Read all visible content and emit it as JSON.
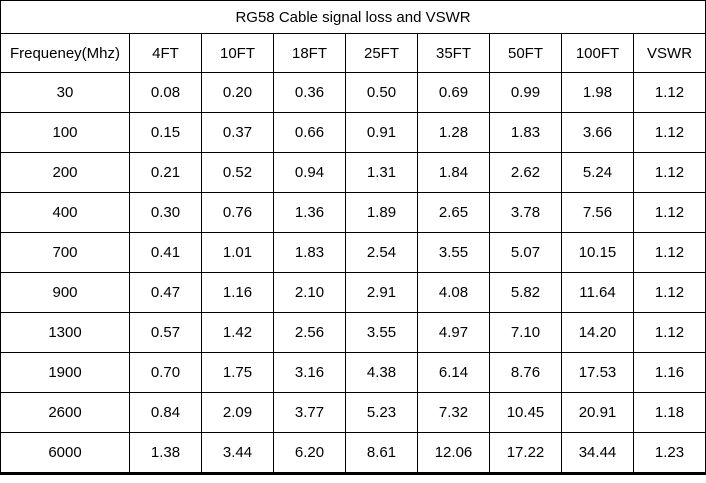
{
  "title": "RG58 Cable signal loss and VSWR",
  "chart_data": {
    "type": "table",
    "title": "RG58 Cable signal loss and VSWR",
    "columns": [
      "Frequeney(Mhz)",
      "4FT",
      "10FT",
      "18FT",
      "25FT",
      "35FT",
      "50FT",
      "100FT",
      "VSWR"
    ],
    "rows": [
      [
        "30",
        "0.08",
        "0.20",
        "0.36",
        "0.50",
        "0.69",
        "0.99",
        "1.98",
        "1.12"
      ],
      [
        "100",
        "0.15",
        "0.37",
        "0.66",
        "0.91",
        "1.28",
        "1.83",
        "3.66",
        "1.12"
      ],
      [
        "200",
        "0.21",
        "0.52",
        "0.94",
        "1.31",
        "1.84",
        "2.62",
        "5.24",
        "1.12"
      ],
      [
        "400",
        "0.30",
        "0.76",
        "1.36",
        "1.89",
        "2.65",
        "3.78",
        "7.56",
        "1.12"
      ],
      [
        "700",
        "0.41",
        "1.01",
        "1.83",
        "2.54",
        "3.55",
        "5.07",
        "10.15",
        "1.12"
      ],
      [
        "900",
        "0.47",
        "1.16",
        "2.10",
        "2.91",
        "4.08",
        "5.82",
        "11.64",
        "1.12"
      ],
      [
        "1300",
        "0.57",
        "1.42",
        "2.56",
        "3.55",
        "4.97",
        "7.10",
        "14.20",
        "1.12"
      ],
      [
        "1900",
        "0.70",
        "1.75",
        "3.16",
        "4.38",
        "6.14",
        "8.76",
        "17.53",
        "1.16"
      ],
      [
        "2600",
        "0.84",
        "2.09",
        "3.77",
        "5.23",
        "7.32",
        "10.45",
        "20.91",
        "1.18"
      ],
      [
        "6000",
        "1.38",
        "3.44",
        "6.20",
        "8.61",
        "12.06",
        "17.22",
        "34.44",
        "1.23"
      ]
    ],
    "layout": {
      "grid": true,
      "border_color": "#000000",
      "background": "#ffffff"
    }
  }
}
